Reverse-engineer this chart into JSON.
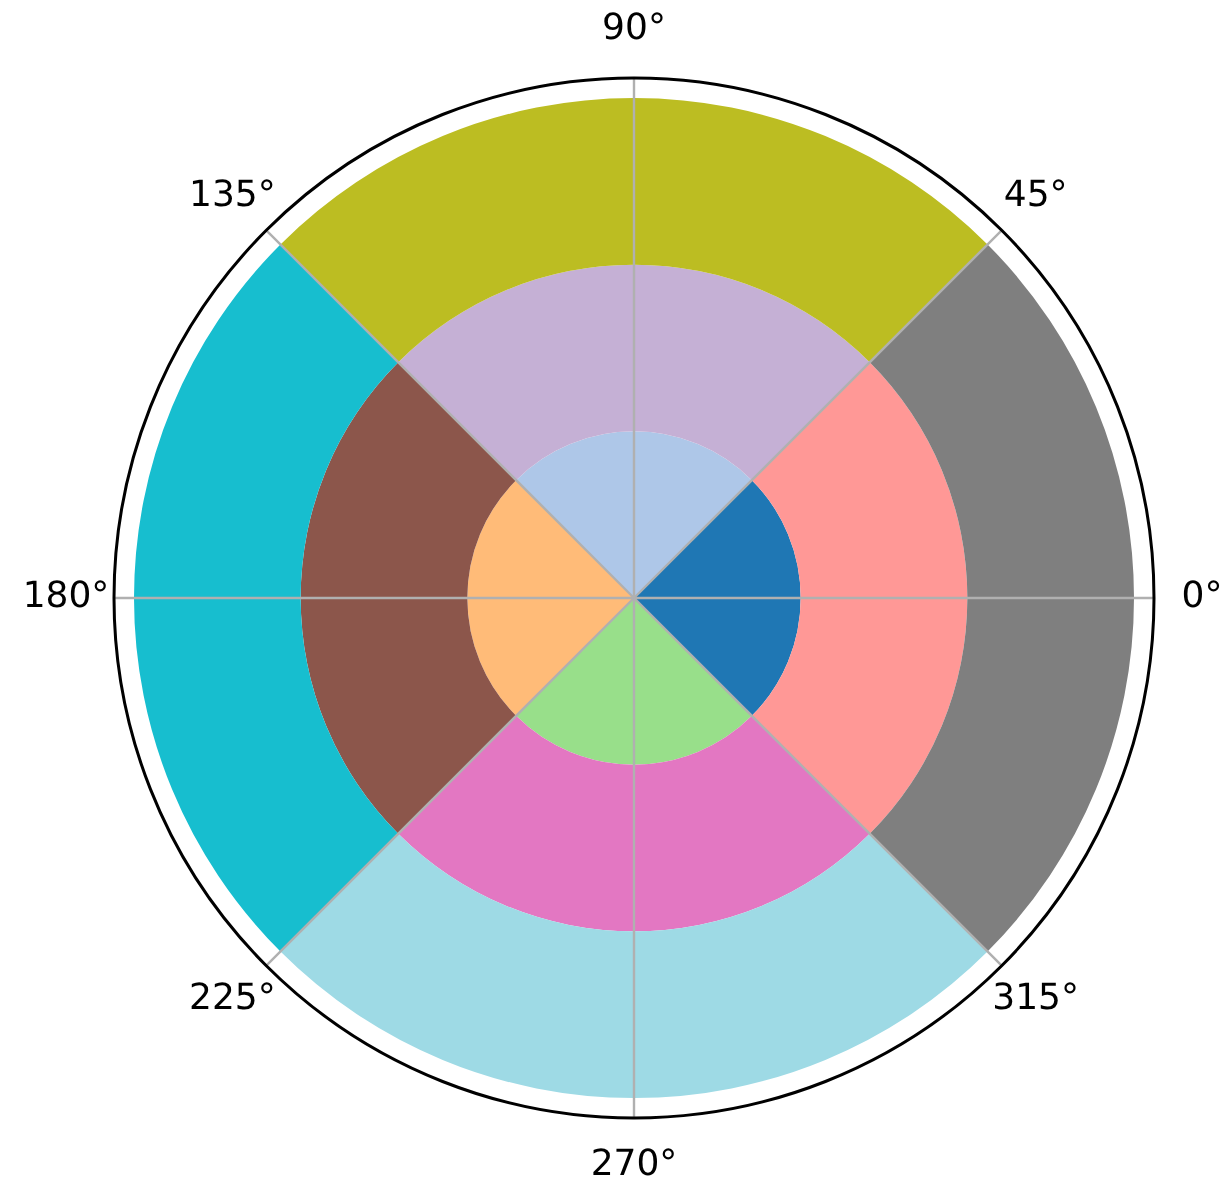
{
  "chart_data": {
    "type": "pie",
    "categories": [
      null,
      null,
      null,
      null
    ],
    "series": [
      {
        "values": [
          25,
          25,
          25,
          25
        ],
        "colors": [
          "#7f7f7f",
          "#9edae5",
          "#17becf",
          "#bcbd22"
        ]
      },
      {
        "values": [
          25,
          25,
          25,
          25
        ],
        "colors": [
          "#ff9896",
          "#e377c2",
          "#8c564b",
          "#c5b0d5"
        ]
      },
      {
        "values": [
          25,
          25,
          25,
          25
        ],
        "colors": [
          "#1f77b4",
          "#98df8a",
          "#ffbb78",
          "#aec7e8"
        ]
      }
    ],
    "annotations": [
      "0°",
      "45°",
      "90°",
      "135°",
      "180°",
      "225°",
      "270°",
      "315°"
    ],
    "grid": true,
    "legend": false
  }
}
